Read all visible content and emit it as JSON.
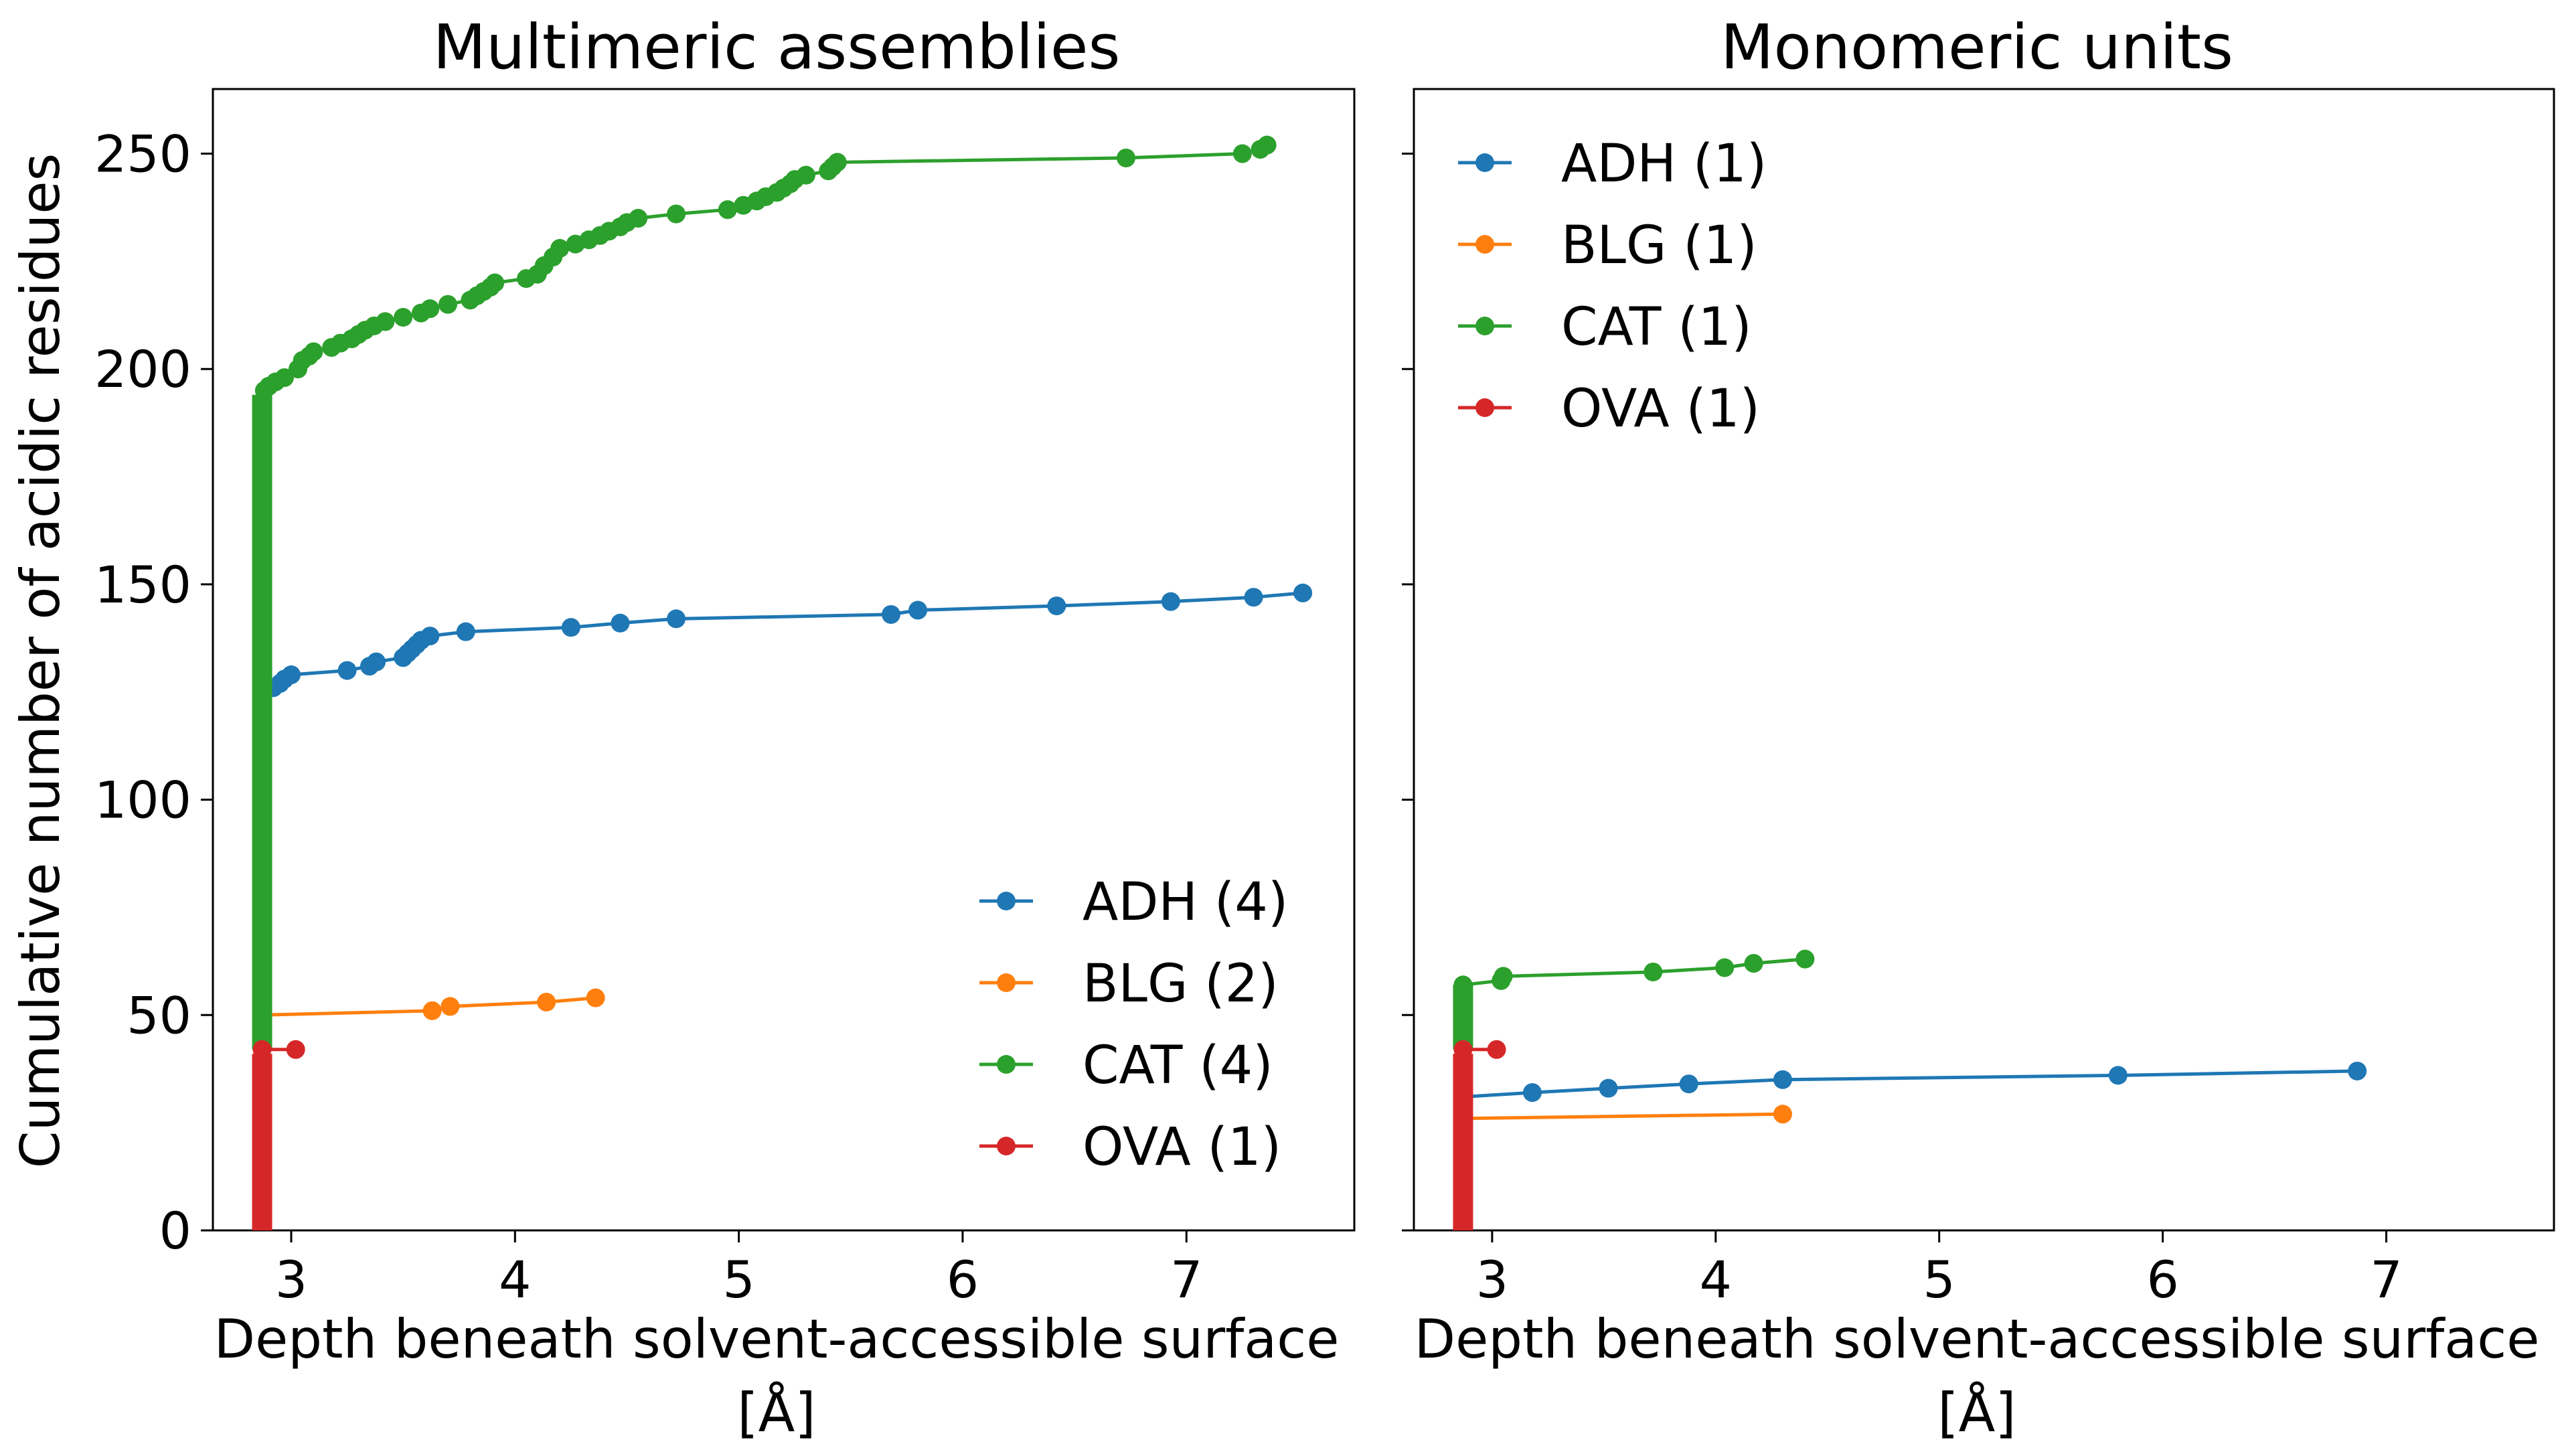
{
  "figure": {
    "ylabel": "Cumulative number of acidic residues",
    "series_colors": {
      "ADH": "#1f77b4",
      "BLG": "#ff7f0e",
      "CAT": "#2ca02c",
      "OVA": "#d62728"
    }
  },
  "chart_data": [
    {
      "type": "line",
      "title": "Multimeric assemblies",
      "xlabel": "Depth beneath solvent-accessible surface [Å]",
      "ylabel": "Cumulative number of acidic residues",
      "xlim": [
        2.65,
        7.75
      ],
      "ylim": [
        0,
        265
      ],
      "xticks": [
        3,
        4,
        5,
        6,
        7
      ],
      "yticks": [
        0,
        50,
        100,
        150,
        200,
        250
      ],
      "legend_position": "lower-right",
      "series": [
        {
          "name": "ADH (4)",
          "color": "#1f77b4",
          "points": [
            [
              2.87,
              124
            ],
            [
              2.88,
              125
            ],
            [
              2.92,
              126
            ],
            [
              2.95,
              127
            ],
            [
              2.97,
              128
            ],
            [
              3.0,
              129
            ],
            [
              3.25,
              130
            ],
            [
              3.35,
              131
            ],
            [
              3.38,
              132
            ],
            [
              3.5,
              133
            ],
            [
              3.52,
              134
            ],
            [
              3.54,
              135
            ],
            [
              3.56,
              136
            ],
            [
              3.58,
              137
            ],
            [
              3.62,
              138
            ],
            [
              3.78,
              139
            ],
            [
              4.25,
              140
            ],
            [
              4.47,
              141
            ],
            [
              4.72,
              142
            ],
            [
              5.68,
              143
            ],
            [
              5.8,
              144
            ],
            [
              6.42,
              145
            ],
            [
              6.93,
              146
            ],
            [
              7.3,
              147
            ],
            [
              7.52,
              148
            ]
          ]
        },
        {
          "name": "BLG (2)",
          "color": "#ff7f0e",
          "points": [
            [
              2.87,
              50
            ],
            [
              3.63,
              51
            ],
            [
              3.71,
              52
            ],
            [
              4.14,
              53
            ],
            [
              4.36,
              54
            ]
          ]
        },
        {
          "name": "CAT (4)",
          "color": "#2ca02c",
          "vertical": {
            "x": 2.87,
            "from": 42,
            "to": 194
          },
          "points": [
            [
              2.88,
              195
            ],
            [
              2.9,
              196
            ],
            [
              2.93,
              197
            ],
            [
              2.97,
              198
            ],
            [
              3.03,
              200
            ],
            [
              3.05,
              202
            ],
            [
              3.08,
              203
            ],
            [
              3.1,
              204
            ],
            [
              3.18,
              205
            ],
            [
              3.22,
              206
            ],
            [
              3.27,
              207
            ],
            [
              3.3,
              208
            ],
            [
              3.33,
              209
            ],
            [
              3.37,
              210
            ],
            [
              3.42,
              211
            ],
            [
              3.5,
              212
            ],
            [
              3.58,
              213
            ],
            [
              3.62,
              214
            ],
            [
              3.7,
              215
            ],
            [
              3.8,
              216
            ],
            [
              3.83,
              217
            ],
            [
              3.86,
              218
            ],
            [
              3.89,
              219
            ],
            [
              3.91,
              220
            ],
            [
              4.05,
              221
            ],
            [
              4.1,
              222
            ],
            [
              4.13,
              224
            ],
            [
              4.17,
              226
            ],
            [
              4.2,
              228
            ],
            [
              4.27,
              229
            ],
            [
              4.33,
              230
            ],
            [
              4.38,
              231
            ],
            [
              4.42,
              232
            ],
            [
              4.47,
              233
            ],
            [
              4.5,
              234
            ],
            [
              4.55,
              235
            ],
            [
              4.72,
              236
            ],
            [
              4.95,
              237
            ],
            [
              5.02,
              238
            ],
            [
              5.08,
              239
            ],
            [
              5.12,
              240
            ],
            [
              5.17,
              241
            ],
            [
              5.2,
              242
            ],
            [
              5.23,
              243
            ],
            [
              5.25,
              244
            ],
            [
              5.3,
              245
            ],
            [
              5.4,
              246
            ],
            [
              5.42,
              247
            ],
            [
              5.44,
              248
            ],
            [
              6.73,
              249
            ],
            [
              7.25,
              250
            ],
            [
              7.33,
              251
            ],
            [
              7.36,
              252
            ]
          ]
        },
        {
          "name": "OVA (1)",
          "color": "#d62728",
          "vertical": {
            "x": 2.87,
            "from": 0,
            "to": 41
          },
          "points": [
            [
              2.87,
              42
            ],
            [
              3.02,
              42
            ]
          ]
        }
      ]
    },
    {
      "type": "line",
      "title": "Monomeric units",
      "xlabel": "Depth beneath solvent-accessible surface [Å]",
      "ylabel": "",
      "xlim": [
        2.65,
        7.75
      ],
      "ylim": [
        0,
        265
      ],
      "xticks": [
        3,
        4,
        5,
        6,
        7
      ],
      "yticks": [
        0,
        50,
        100,
        150,
        200,
        250
      ],
      "legend_position": "upper-left",
      "series": [
        {
          "name": "ADH (1)",
          "color": "#1f77b4",
          "points": [
            [
              2.87,
              31
            ],
            [
              3.18,
              32
            ],
            [
              3.52,
              33
            ],
            [
              3.88,
              34
            ],
            [
              4.3,
              35
            ],
            [
              5.8,
              36
            ],
            [
              6.87,
              37
            ]
          ]
        },
        {
          "name": "BLG (1)",
          "color": "#ff7f0e",
          "points": [
            [
              2.87,
              26
            ],
            [
              4.3,
              27
            ]
          ]
        },
        {
          "name": "CAT (1)",
          "color": "#2ca02c",
          "vertical": {
            "x": 2.87,
            "from": 42,
            "to": 57
          },
          "points": [
            [
              2.87,
              57
            ],
            [
              3.04,
              58
            ],
            [
              3.05,
              59
            ],
            [
              3.72,
              60
            ],
            [
              4.04,
              61
            ],
            [
              4.17,
              62
            ],
            [
              4.4,
              63
            ]
          ]
        },
        {
          "name": "OVA (1)",
          "color": "#d62728",
          "vertical": {
            "x": 2.87,
            "from": 0,
            "to": 41
          },
          "points": [
            [
              2.87,
              42
            ],
            [
              3.02,
              42
            ]
          ]
        }
      ]
    }
  ]
}
